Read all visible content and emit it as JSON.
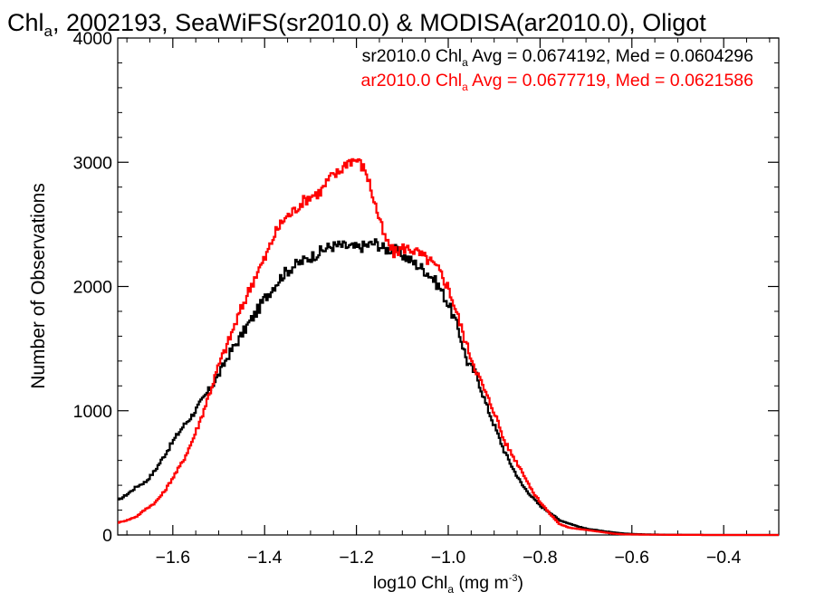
{
  "chart_data": {
    "type": "line",
    "title": {
      "pre": "Chl",
      "sub": "a",
      "post": ", 2002193, SeaWiFS(sr2010.0) & MODISA(ar2010.0), Oligot"
    },
    "xlabel": {
      "pre": "log10 Chl",
      "sub": "a",
      "mid": " (mg m",
      "sup": "-3",
      "post": ")"
    },
    "ylabel": "Number of Observations",
    "xlim": [
      -1.72,
      -0.28
    ],
    "ylim": [
      0,
      4000
    ],
    "xticks": [
      -1.6,
      -1.4,
      -1.2,
      -1.0,
      -0.8,
      -0.6,
      -0.4
    ],
    "xtick_labels": [
      "−1.6",
      "−1.4",
      "−1.2",
      "−1.0",
      "−0.8",
      "−0.6",
      "−0.4"
    ],
    "yticks": [
      0,
      1000,
      2000,
      3000,
      4000
    ],
    "ytick_labels": [
      "0",
      "1000",
      "2000",
      "3000",
      "4000"
    ],
    "grid": false,
    "legend_position": "top-right",
    "series": [
      {
        "name": "sr2010.0",
        "color": "#000000",
        "label": {
          "pre": "sr2010.0 Chl",
          "sub": "a",
          "post": " Avg = 0.0674192, Med = 0.0604296"
        },
        "x": [
          -1.72,
          -1.7,
          -1.68,
          -1.66,
          -1.64,
          -1.62,
          -1.6,
          -1.58,
          -1.56,
          -1.54,
          -1.52,
          -1.5,
          -1.48,
          -1.46,
          -1.44,
          -1.42,
          -1.4,
          -1.38,
          -1.36,
          -1.34,
          -1.32,
          -1.3,
          -1.28,
          -1.26,
          -1.24,
          -1.22,
          -1.2,
          -1.18,
          -1.16,
          -1.14,
          -1.12,
          -1.1,
          -1.08,
          -1.06,
          -1.04,
          -1.02,
          -1.0,
          -0.98,
          -0.96,
          -0.94,
          -0.92,
          -0.9,
          -0.88,
          -0.86,
          -0.84,
          -0.82,
          -0.8,
          -0.78,
          -0.76,
          -0.74,
          -0.72,
          -0.7,
          -0.68,
          -0.66,
          -0.64,
          -0.62,
          -0.6,
          -0.58,
          -0.56,
          -0.54,
          -0.52,
          -0.5,
          -0.48,
          -0.46,
          -0.44,
          -0.42,
          -0.4,
          -0.38,
          -0.36,
          -0.34,
          -0.32,
          -0.3,
          -0.28
        ],
        "y": [
          280,
          330,
          390,
          430,
          520,
          640,
          760,
          870,
          960,
          1070,
          1180,
          1300,
          1450,
          1560,
          1680,
          1790,
          1910,
          2010,
          2100,
          2160,
          2200,
          2240,
          2280,
          2320,
          2330,
          2320,
          2310,
          2330,
          2350,
          2300,
          2300,
          2250,
          2200,
          2150,
          2090,
          1990,
          1850,
          1660,
          1390,
          1290,
          1060,
          870,
          680,
          530,
          400,
          310,
          230,
          180,
          120,
          95,
          70,
          50,
          40,
          28,
          20,
          12,
          8,
          6,
          4,
          3,
          2,
          2,
          1,
          1,
          0,
          0,
          0,
          0,
          0,
          0,
          0,
          0,
          0
        ]
      },
      {
        "name": "ar2010.0",
        "color": "#ff0000",
        "label": {
          "pre": "ar2010.0 Chl",
          "sub": "a",
          "post": " Avg = 0.0677719, Med = 0.0621586"
        },
        "x": [
          -1.72,
          -1.7,
          -1.68,
          -1.66,
          -1.64,
          -1.62,
          -1.6,
          -1.58,
          -1.56,
          -1.54,
          -1.52,
          -1.5,
          -1.48,
          -1.46,
          -1.44,
          -1.42,
          -1.4,
          -1.38,
          -1.36,
          -1.34,
          -1.32,
          -1.3,
          -1.28,
          -1.26,
          -1.24,
          -1.22,
          -1.2,
          -1.18,
          -1.16,
          -1.14,
          -1.12,
          -1.1,
          -1.08,
          -1.06,
          -1.04,
          -1.02,
          -1.0,
          -0.98,
          -0.96,
          -0.94,
          -0.92,
          -0.9,
          -0.88,
          -0.86,
          -0.84,
          -0.82,
          -0.8,
          -0.78,
          -0.76,
          -0.74,
          -0.72,
          -0.7,
          -0.68,
          -0.66,
          -0.64,
          -0.62,
          -0.6,
          -0.58,
          -0.56,
          -0.54,
          -0.52,
          -0.5,
          -0.48,
          -0.46,
          -0.44,
          -0.42,
          -0.4,
          -0.38,
          -0.36,
          -0.34,
          -0.32,
          -0.3,
          -0.28
        ],
        "y": [
          100,
          120,
          150,
          210,
          260,
          350,
          470,
          590,
          750,
          940,
          1160,
          1380,
          1560,
          1750,
          1930,
          2100,
          2230,
          2420,
          2540,
          2600,
          2680,
          2730,
          2760,
          2870,
          2920,
          3010,
          3020,
          2920,
          2650,
          2390,
          2270,
          2310,
          2300,
          2250,
          2200,
          2120,
          1980,
          1750,
          1510,
          1320,
          1140,
          980,
          760,
          630,
          510,
          360,
          260,
          170,
          90,
          60,
          50,
          40,
          30,
          20,
          10,
          5,
          4,
          3,
          2,
          2,
          1,
          1,
          1,
          1,
          0,
          0,
          0,
          0,
          0,
          0,
          0,
          0,
          0
        ]
      }
    ]
  }
}
